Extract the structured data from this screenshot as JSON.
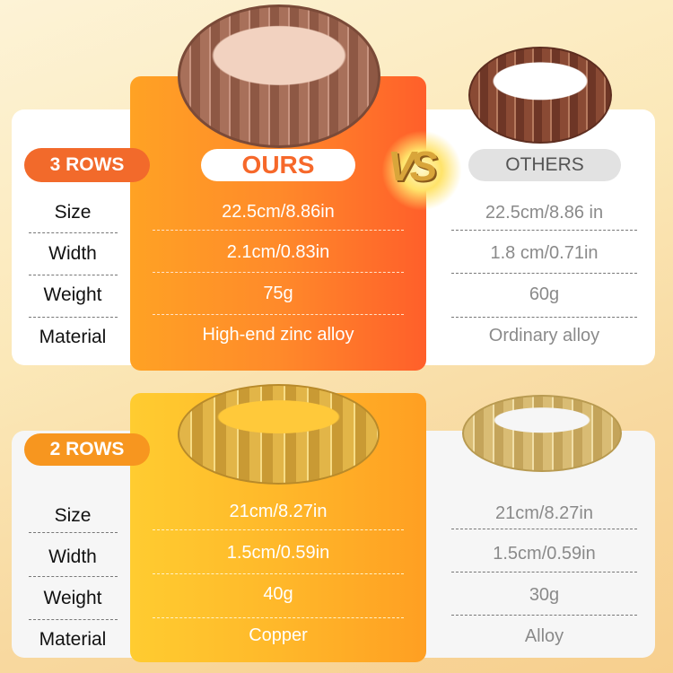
{
  "header": {
    "ours_label": "OURS",
    "vs_label": "VS",
    "others_label": "OTHERS"
  },
  "row_labels": [
    "Size",
    "Width",
    "Weight",
    "Material"
  ],
  "sections": [
    {
      "badge": "3 ROWS",
      "badge_color": "#f26a2b",
      "ours": [
        "22.5cm/8.86in",
        "2.1cm/0.83in",
        "75g",
        "High-end zinc alloy"
      ],
      "others": [
        "22.5cm/8.86 in",
        "1.8 cm/0.71in",
        "60g",
        "Ordinary alloy"
      ],
      "bracelet_color": "copper"
    },
    {
      "badge": "2 ROWS",
      "badge_color": "#f7961f",
      "ours": [
        "21cm/8.27in",
        "1.5cm/0.59in",
        "40g",
        "Copper"
      ],
      "others": [
        "21cm/8.27in",
        "1.5cm/0.59in",
        "30g",
        "Alloy"
      ],
      "bracelet_color": "gold"
    }
  ]
}
